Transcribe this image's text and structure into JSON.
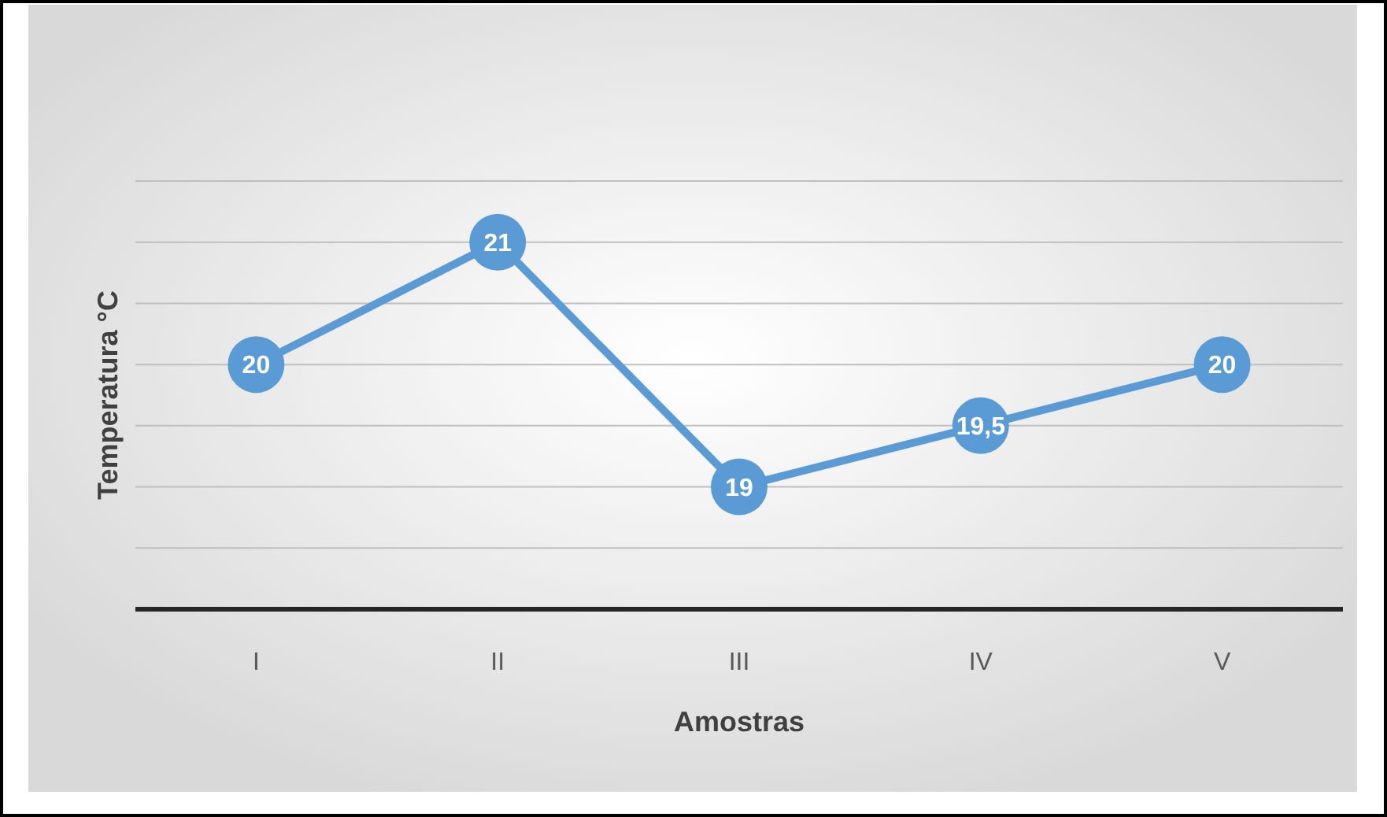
{
  "chart_data": {
    "type": "line",
    "xlabel": "Amostras",
    "ylabel": "Temperatura °C",
    "categories": [
      "I",
      "II",
      "III",
      "IV",
      "V"
    ],
    "series": [
      {
        "color": "#5b9bd5",
        "values": [
          20,
          21,
          19,
          19.5,
          20
        ],
        "value_labels": [
          "20",
          "21",
          "19",
          "19,5",
          "20"
        ]
      }
    ],
    "ylim": [
      18,
      21.5
    ],
    "yticks": [
      {
        "value": 18,
        "label": null
      },
      {
        "value": 18.5,
        "label": null
      },
      {
        "value": 19,
        "label": null
      },
      {
        "value": 19.5,
        "label": null
      },
      {
        "value": 20,
        "label": null
      },
      {
        "value": 20.5,
        "label": null
      },
      {
        "value": 21,
        "label": null
      },
      {
        "value": 21.5,
        "label": null
      }
    ],
    "tick_labels": "x",
    "grid": "y",
    "marker": "circle",
    "line_style": "solid"
  }
}
